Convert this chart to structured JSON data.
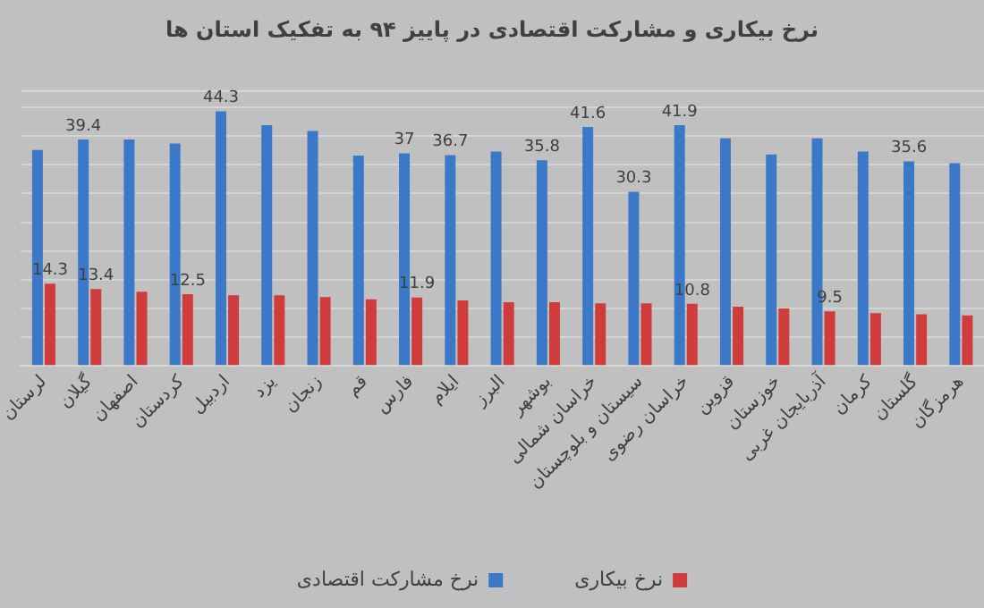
{
  "chart_data": {
    "type": "bar",
    "title": "نرخ بیکاری و مشارکت اقتصادی در پاییز ۹۴ به تفکیک استان ها",
    "categories": [
      "لرستان",
      "گیلان",
      "اصفهان",
      "کردستان",
      "اردبیل",
      "یزد",
      "زنجان",
      "قم",
      "فارس",
      "ایلام",
      "البرز",
      "بوشهر",
      "خراسان شمالی",
      "سیستان و بلوچستان",
      "خراسان رضوی",
      "قزوین",
      "خوزستان",
      "آذربایجان غربی",
      "کرمان",
      "گلستان",
      "هرمزگان"
    ],
    "series": [
      {
        "name": "نرخ مشارکت اقتصادی",
        "color": "#3b78c8",
        "values": [
          37.6,
          39.4,
          39.4,
          38.7,
          44.3,
          41.9,
          40.9,
          36.6,
          37,
          36.7,
          37.3,
          35.8,
          41.6,
          30.3,
          41.9,
          39.6,
          36.8,
          39.6,
          37.3,
          35.6,
          35.3
        ],
        "value_labels": [
          null,
          "39.4",
          null,
          null,
          "44.3",
          null,
          null,
          null,
          "37",
          "36.7",
          null,
          "35.8",
          "41.6",
          "30.3",
          "41.9",
          null,
          null,
          null,
          null,
          "35.6",
          null
        ]
      },
      {
        "name": "نرخ بیکاری",
        "color": "#d03c3c",
        "values": [
          14.3,
          13.4,
          12.9,
          12.5,
          12.3,
          12.3,
          12.0,
          11.6,
          11.9,
          11.4,
          11.1,
          11.1,
          10.9,
          10.9,
          10.8,
          10.3,
          10.0,
          9.5,
          9.2,
          9.0,
          8.8
        ],
        "value_labels": [
          "14.3",
          "13.4",
          null,
          "12.5",
          null,
          null,
          null,
          null,
          "11.9",
          null,
          null,
          null,
          null,
          null,
          "10.8",
          null,
          null,
          "9.5",
          null,
          null,
          null
        ]
      }
    ],
    "ylim": [
      0,
      48
    ],
    "yticks": [
      {
        "value": 0,
        "label": null
      },
      {
        "value": 5,
        "label": null
      },
      {
        "value": 10,
        "label": null
      },
      {
        "value": 15,
        "label": null
      },
      {
        "value": 20,
        "label": null
      },
      {
        "value": 25,
        "label": null
      },
      {
        "value": 30,
        "label": null
      },
      {
        "value": 35,
        "label": null
      },
      {
        "value": 40,
        "label": null
      },
      {
        "value": 45,
        "label": null
      }
    ],
    "grid": "y",
    "legend": "bottom",
    "tick_labels": "x"
  }
}
